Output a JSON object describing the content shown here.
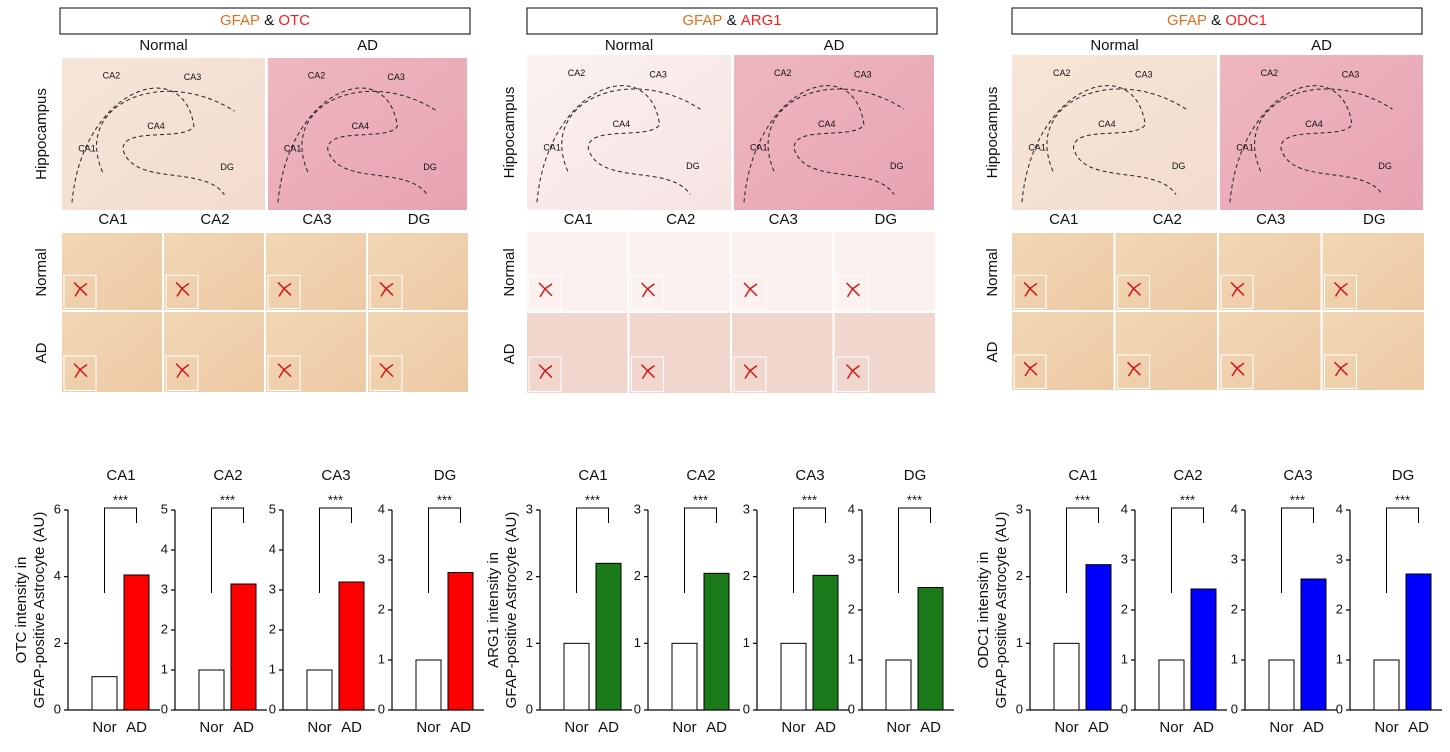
{
  "panels": [
    {
      "header": {
        "stain1": "GFAP",
        "conj": "&",
        "target": "OTC"
      },
      "hippo_label": "Hippocampus",
      "columns": [
        "Normal",
        "AD"
      ],
      "regions": [
        "CA1",
        "CA2",
        "CA3",
        "DG"
      ],
      "rows": [
        "Normal",
        "AD"
      ],
      "image_labels": [
        [
          "CA2",
          "CA3",
          "CA4",
          "CA1",
          "DG"
        ],
        [
          "CA2",
          "CA3",
          "CA4",
          "CA1",
          "DG"
        ]
      ]
    },
    {
      "header": {
        "stain1": "GFAP",
        "conj": "&",
        "target": "ARG1"
      },
      "hippo_label": "Hippocampus",
      "columns": [
        "Normal",
        "AD"
      ],
      "regions": [
        "CA1",
        "CA2",
        "CA3",
        "DG"
      ],
      "rows": [
        "Normal",
        "AD"
      ],
      "image_labels": [
        [
          "CA2",
          "CA3",
          "CA4",
          "CA1",
          "DG"
        ],
        [
          "CA2",
          "CA3",
          "CA4",
          "CA1",
          "DG"
        ]
      ]
    },
    {
      "header": {
        "stain1": "GFAP",
        "conj": "&",
        "target": "ODC1"
      },
      "hippo_label": "Hippocampus",
      "columns": [
        "Normal",
        "AD"
      ],
      "regions": [
        "CA1",
        "CA2",
        "CA3",
        "DG"
      ],
      "rows": [
        "Normal",
        "AD"
      ],
      "image_labels": [
        [
          "CA2",
          "CA3",
          "CA4",
          "CA1",
          "DG"
        ],
        [
          "CA2",
          "CA3",
          "CA4",
          "CA1",
          "DG"
        ]
      ]
    }
  ],
  "chart_data": [
    {
      "type": "bar",
      "title": "CA1",
      "ylabel": [
        "OTC intensity in",
        "GFAP-positive Astrocyte (AU)"
      ],
      "categories": [
        "Nor",
        "AD"
      ],
      "values": [
        1.0,
        4.05
      ],
      "colors": [
        "#ffffff",
        "#ff0000"
      ],
      "ylim": [
        0,
        6
      ],
      "yticks": [
        0,
        2,
        4,
        6
      ],
      "annotation": "***"
    },
    {
      "type": "bar",
      "title": "CA2",
      "categories": [
        "Nor",
        "AD"
      ],
      "values": [
        1.0,
        3.15
      ],
      "colors": [
        "#ffffff",
        "#ff0000"
      ],
      "ylim": [
        0,
        5
      ],
      "yticks": [
        0,
        1,
        2,
        3,
        4,
        5
      ],
      "annotation": "***"
    },
    {
      "type": "bar",
      "title": "CA3",
      "categories": [
        "Nor",
        "AD"
      ],
      "values": [
        1.0,
        3.2
      ],
      "colors": [
        "#ffffff",
        "#ff0000"
      ],
      "ylim": [
        0,
        5
      ],
      "yticks": [
        0,
        1,
        2,
        3,
        4,
        5
      ],
      "annotation": "***"
    },
    {
      "type": "bar",
      "title": "DG",
      "categories": [
        "Nor",
        "AD"
      ],
      "values": [
        1.0,
        2.75
      ],
      "colors": [
        "#ffffff",
        "#ff0000"
      ],
      "ylim": [
        0,
        4
      ],
      "yticks": [
        0,
        1,
        2,
        3,
        4
      ],
      "annotation": "***"
    },
    {
      "type": "bar",
      "title": "CA1",
      "ylabel": [
        "ARG1 intensity in",
        "GFAP-positive Astrocyte (AU)"
      ],
      "categories": [
        "Nor",
        "AD"
      ],
      "values": [
        1.0,
        2.2
      ],
      "colors": [
        "#ffffff",
        "#1a7a1a"
      ],
      "ylim": [
        0,
        3
      ],
      "yticks": [
        0,
        1,
        2,
        3
      ],
      "annotation": "***"
    },
    {
      "type": "bar",
      "title": "CA2",
      "categories": [
        "Nor",
        "AD"
      ],
      "values": [
        1.0,
        2.05
      ],
      "colors": [
        "#ffffff",
        "#1a7a1a"
      ],
      "ylim": [
        0,
        3
      ],
      "yticks": [
        0,
        1,
        2,
        3
      ],
      "annotation": "***"
    },
    {
      "type": "bar",
      "title": "CA3",
      "categories": [
        "Nor",
        "AD"
      ],
      "values": [
        1.0,
        2.02
      ],
      "colors": [
        "#ffffff",
        "#1a7a1a"
      ],
      "ylim": [
        0,
        3
      ],
      "yticks": [
        0,
        1,
        2,
        3
      ],
      "annotation": "***"
    },
    {
      "type": "bar",
      "title": "DG",
      "categories": [
        "Nor",
        "AD"
      ],
      "values": [
        1.0,
        2.45
      ],
      "colors": [
        "#ffffff",
        "#1a7a1a"
      ],
      "ylim": [
        0,
        4
      ],
      "yticks": [
        0,
        1,
        2,
        3,
        4
      ],
      "annotation": "***"
    },
    {
      "type": "bar",
      "title": "CA1",
      "ylabel": [
        "ODC1 intensity in",
        "GFAP-positive Astrocyte (AU)"
      ],
      "categories": [
        "Nor",
        "AD"
      ],
      "values": [
        1.0,
        2.18
      ],
      "colors": [
        "#ffffff",
        "#0000ff"
      ],
      "ylim": [
        0,
        3
      ],
      "yticks": [
        0,
        1,
        2,
        3
      ],
      "annotation": "***"
    },
    {
      "type": "bar",
      "title": "CA2",
      "categories": [
        "Nor",
        "AD"
      ],
      "values": [
        1.0,
        2.42
      ],
      "colors": [
        "#ffffff",
        "#0000ff"
      ],
      "ylim": [
        0,
        4
      ],
      "yticks": [
        0,
        1,
        2,
        3,
        4
      ],
      "annotation": "***"
    },
    {
      "type": "bar",
      "title": "CA3",
      "categories": [
        "Nor",
        "AD"
      ],
      "values": [
        1.0,
        2.62
      ],
      "colors": [
        "#ffffff",
        "#0000ff"
      ],
      "ylim": [
        0,
        4
      ],
      "yticks": [
        0,
        1,
        2,
        3,
        4
      ],
      "annotation": "***"
    },
    {
      "type": "bar",
      "title": "DG",
      "categories": [
        "Nor",
        "AD"
      ],
      "values": [
        1.0,
        2.72
      ],
      "colors": [
        "#ffffff",
        "#0000ff"
      ],
      "ylim": [
        0,
        4
      ],
      "yticks": [
        0,
        1,
        2,
        3,
        4
      ],
      "annotation": "***"
    }
  ]
}
